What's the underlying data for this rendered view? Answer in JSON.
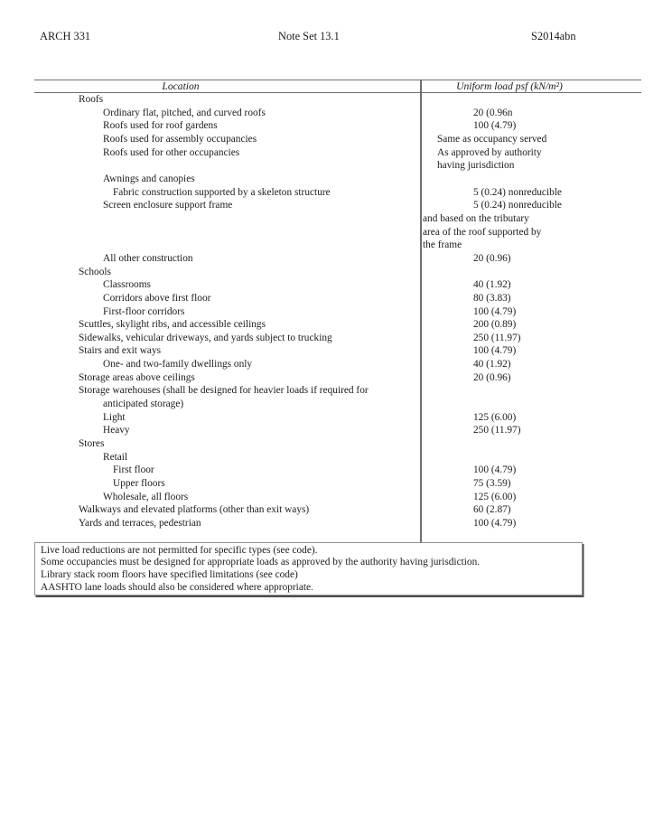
{
  "header": {
    "left": "ARCH 331",
    "center": "Note Set 13.1",
    "right": "S2014abn"
  },
  "table": {
    "col1_header": "Location",
    "col2_header": "Uniform load psf (kN/m²)",
    "rows": [
      {
        "loc": "Roofs",
        "ind": 0,
        "val": "",
        "va": ""
      },
      {
        "loc": "Ordinary flat, pitched, and curved roofs",
        "ind": 1,
        "val": "20 (0.96n",
        "va": "num"
      },
      {
        "loc": "Roofs used for roof gardens",
        "ind": 1,
        "val": "100 (4.79)",
        "va": "num"
      },
      {
        "loc": "Roofs used for assembly occupancies",
        "ind": 1,
        "val": "Same as occupancy served",
        "va": "text"
      },
      {
        "loc": "Roofs used for other occupancies",
        "ind": 1,
        "val": "As approved by authority",
        "va": "text"
      },
      {
        "loc": "",
        "ind": 0,
        "val": "having jurisdiction",
        "va": "text"
      },
      {
        "loc": "Awnings and canopies",
        "ind": 1,
        "val": "",
        "va": ""
      },
      {
        "loc": "Fabric construction supported by a skeleton structure",
        "ind": 2,
        "val": "5 (0.24) nonreducible",
        "va": "num"
      },
      {
        "loc": "Screen enclosure support frame",
        "ind": 1,
        "val": "5 (0.24) nonreducible",
        "va": "num"
      },
      {
        "loc": "",
        "ind": 0,
        "val": "and based on the tributary",
        "va": "wrap"
      },
      {
        "loc": "",
        "ind": 0,
        "val": "area of the roof supported by",
        "va": "wrap"
      },
      {
        "loc": "",
        "ind": 0,
        "val": "the frame",
        "va": "wrap"
      },
      {
        "loc": "All other construction",
        "ind": 1,
        "val": "20 (0.96)",
        "va": "num"
      },
      {
        "loc": "Schools",
        "ind": 0,
        "val": "",
        "va": ""
      },
      {
        "loc": "Classrooms",
        "ind": 1,
        "val": "40 (1.92)",
        "va": "num"
      },
      {
        "loc": "Corridors above first floor",
        "ind": 1,
        "val": "80 (3.83)",
        "va": "num"
      },
      {
        "loc": "First-floor corridors",
        "ind": 1,
        "val": "100 (4.79)",
        "va": "num"
      },
      {
        "loc": "Scuttles, skylight ribs, and accessible ceilings",
        "ind": 0,
        "val": "200 (0.89)",
        "va": "num"
      },
      {
        "loc": "Sidewalks, vehicular driveways, and yards subject to trucking",
        "ind": 0,
        "val": "250 (11.97)",
        "va": "num"
      },
      {
        "loc": "Stairs and exit ways",
        "ind": 0,
        "val": "100 (4.79)",
        "va": "num"
      },
      {
        "loc": "One- and two-family dwellings only",
        "ind": 1,
        "val": "40 (1.92)",
        "va": "num"
      },
      {
        "loc": "Storage areas above ceilings",
        "ind": 0,
        "val": "20 (0.96)",
        "va": "num"
      },
      {
        "loc": "Storage warehouses (shall be designed for heavier loads if required for",
        "ind": 0,
        "val": "",
        "va": ""
      },
      {
        "loc": "anticipated storage)",
        "ind": 1,
        "val": "",
        "va": ""
      },
      {
        "loc": "Light",
        "ind": 1,
        "val": "125 (6.00)",
        "va": "num"
      },
      {
        "loc": "Heavy",
        "ind": 1,
        "val": "250 (11.97)",
        "va": "num"
      },
      {
        "loc": "Stores",
        "ind": 0,
        "val": "",
        "va": ""
      },
      {
        "loc": "Retail",
        "ind": 1,
        "val": "",
        "va": ""
      },
      {
        "loc": "First floor",
        "ind": 2,
        "val": "100 (4.79)",
        "va": "num"
      },
      {
        "loc": "Upper floors",
        "ind": 2,
        "val": "75 (3.59)",
        "va": "num"
      },
      {
        "loc": "Wholesale, all floors",
        "ind": 1,
        "val": "125 (6.00)",
        "va": "num"
      },
      {
        "loc": "Walkways and elevated platforms (other than exit ways)",
        "ind": 0,
        "val": "60 (2.87)",
        "va": "num"
      },
      {
        "loc": "Yards and terraces, pedestrian",
        "ind": 0,
        "val": "100 (4.79)",
        "va": "num"
      }
    ]
  },
  "notes": {
    "lines": [
      "Live load reductions are not permitted for specific types (see code).",
      "Some occupancies must be designed for appropriate loads as approved by the authority having jurisdiction.",
      "Library stack room floors have specified limitations (see code)",
      "AASHTO lane loads should also be considered where appropriate."
    ]
  }
}
